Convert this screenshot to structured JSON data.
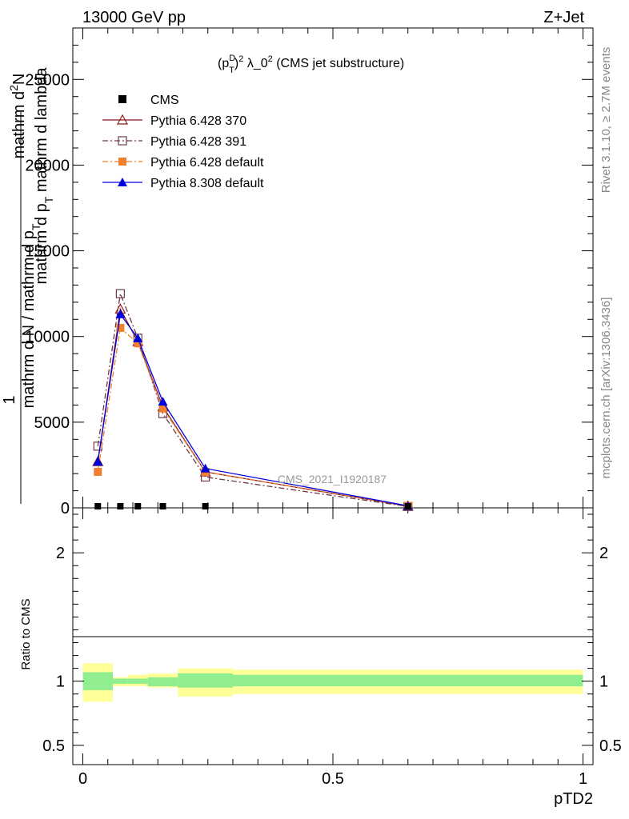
{
  "header": {
    "left": "13000 GeV pp",
    "right": "Z+Jet"
  },
  "side_labels": {
    "right_top": "Rivet 3.1.10, ≥ 2.7M events",
    "right_bottom": "mcplots.cern.ch [arXiv:1306.3436]"
  },
  "plot_title": {
    "p": "(p",
    "sup_d": "D",
    "sub_t": "T",
    "close": ")",
    "sup2": "2",
    "rest": " λ_0",
    "sup2b": "2",
    "tail": " (CMS jet substructure)"
  },
  "watermark": "CMS_2021_I1920187",
  "y_label_main": {
    "numerator_prefix": "1",
    "denominator": "mathrm d N / mathrm d p_T",
    "line2": "mathrm d^{2}N",
    "line3": "mathrm d p_T mathrm d lambda"
  },
  "y_label_numerator": "1",
  "y_label_den": "mathrm d N / mathrm d p",
  "y_label_den_sub": "T",
  "y_label_top": "mathrm d",
  "y_label_top_sup": "2",
  "y_label_top_rest": "N",
  "y_label_bot": "mathrm d p",
  "y_label_bot_sub": "T",
  "y_label_bot_rest": " mathrm d lambda",
  "ratio_ylabel": "Ratio to CMS",
  "x_axis_label": "pTD2",
  "legend": [
    {
      "label": "CMS",
      "color": "#000000",
      "marker": "filled-square",
      "line": "none"
    },
    {
      "label": "Pythia 6.428 370",
      "color": "#8b1a1a",
      "marker": "open-triangle",
      "line": "solid"
    },
    {
      "label": "Pythia 6.428 391",
      "color": "#6b3a4a",
      "marker": "open-square",
      "line": "dashdot"
    },
    {
      "label": "Pythia 6.428 default",
      "color": "#f08030",
      "marker": "filled-square",
      "line": "dashdot"
    },
    {
      "label": "Pythia 8.308 default",
      "color": "#0000dd",
      "marker": "filled-triangle",
      "line": "solid"
    }
  ],
  "chart_data": [
    {
      "type": "line",
      "panel": "main",
      "xlim": [
        -0.02,
        1.02
      ],
      "ylim": [
        0,
        28000
      ],
      "yticks": [
        0,
        5000,
        10000,
        15000,
        20000,
        25000
      ],
      "ytick_labels": [
        "0",
        "5000",
        "10000",
        "15000",
        "20000",
        "25000"
      ],
      "x": [
        0.03,
        0.075,
        0.11,
        0.16,
        0.245,
        0.65
      ],
      "series": [
        {
          "name": "CMS",
          "values": [
            0,
            0,
            0,
            0,
            0,
            0
          ]
        },
        {
          "name": "Pythia 6.428 370",
          "values": [
            2700,
            11600,
            9700,
            5900,
            2100,
            100
          ]
        },
        {
          "name": "Pythia 6.428 391",
          "values": [
            3600,
            12500,
            9900,
            5500,
            1800,
            80
          ]
        },
        {
          "name": "Pythia 6.428 default",
          "values": [
            2100,
            10500,
            9600,
            5800,
            2100,
            120
          ]
        },
        {
          "name": "Pythia 8.308 default",
          "values": [
            2700,
            11300,
            9900,
            6200,
            2300,
            120
          ]
        }
      ]
    },
    {
      "type": "area",
      "panel": "ratio",
      "xlim": [
        -0.02,
        1.02
      ],
      "ylim": [
        0.35,
        2.35
      ],
      "yticks": [
        0.5,
        1,
        2
      ],
      "ytick_labels": [
        "0.5",
        "1",
        "2"
      ],
      "xticks": [
        0,
        0.5,
        1
      ],
      "xtick_labels": [
        "0",
        "0.5",
        "1"
      ],
      "bins": [
        [
          0,
          0.06
        ],
        [
          0.06,
          0.09
        ],
        [
          0.09,
          0.13
        ],
        [
          0.13,
          0.19
        ],
        [
          0.19,
          0.3
        ],
        [
          0.3,
          1.0
        ]
      ],
      "stat_band": [
        [
          0.93,
          1.07
        ],
        [
          0.98,
          1.02
        ],
        [
          0.98,
          1.02
        ],
        [
          0.96,
          1.03
        ],
        [
          0.95,
          1.06
        ],
        [
          0.96,
          1.05
        ]
      ],
      "total_band": [
        [
          0.84,
          1.14
        ],
        [
          0.96,
          1.03
        ],
        [
          0.96,
          1.05
        ],
        [
          0.95,
          1.06
        ],
        [
          0.88,
          1.1
        ],
        [
          0.9,
          1.09
        ]
      ],
      "colors": {
        "stat": "#90ee90",
        "total": "#ffff99"
      }
    }
  ]
}
